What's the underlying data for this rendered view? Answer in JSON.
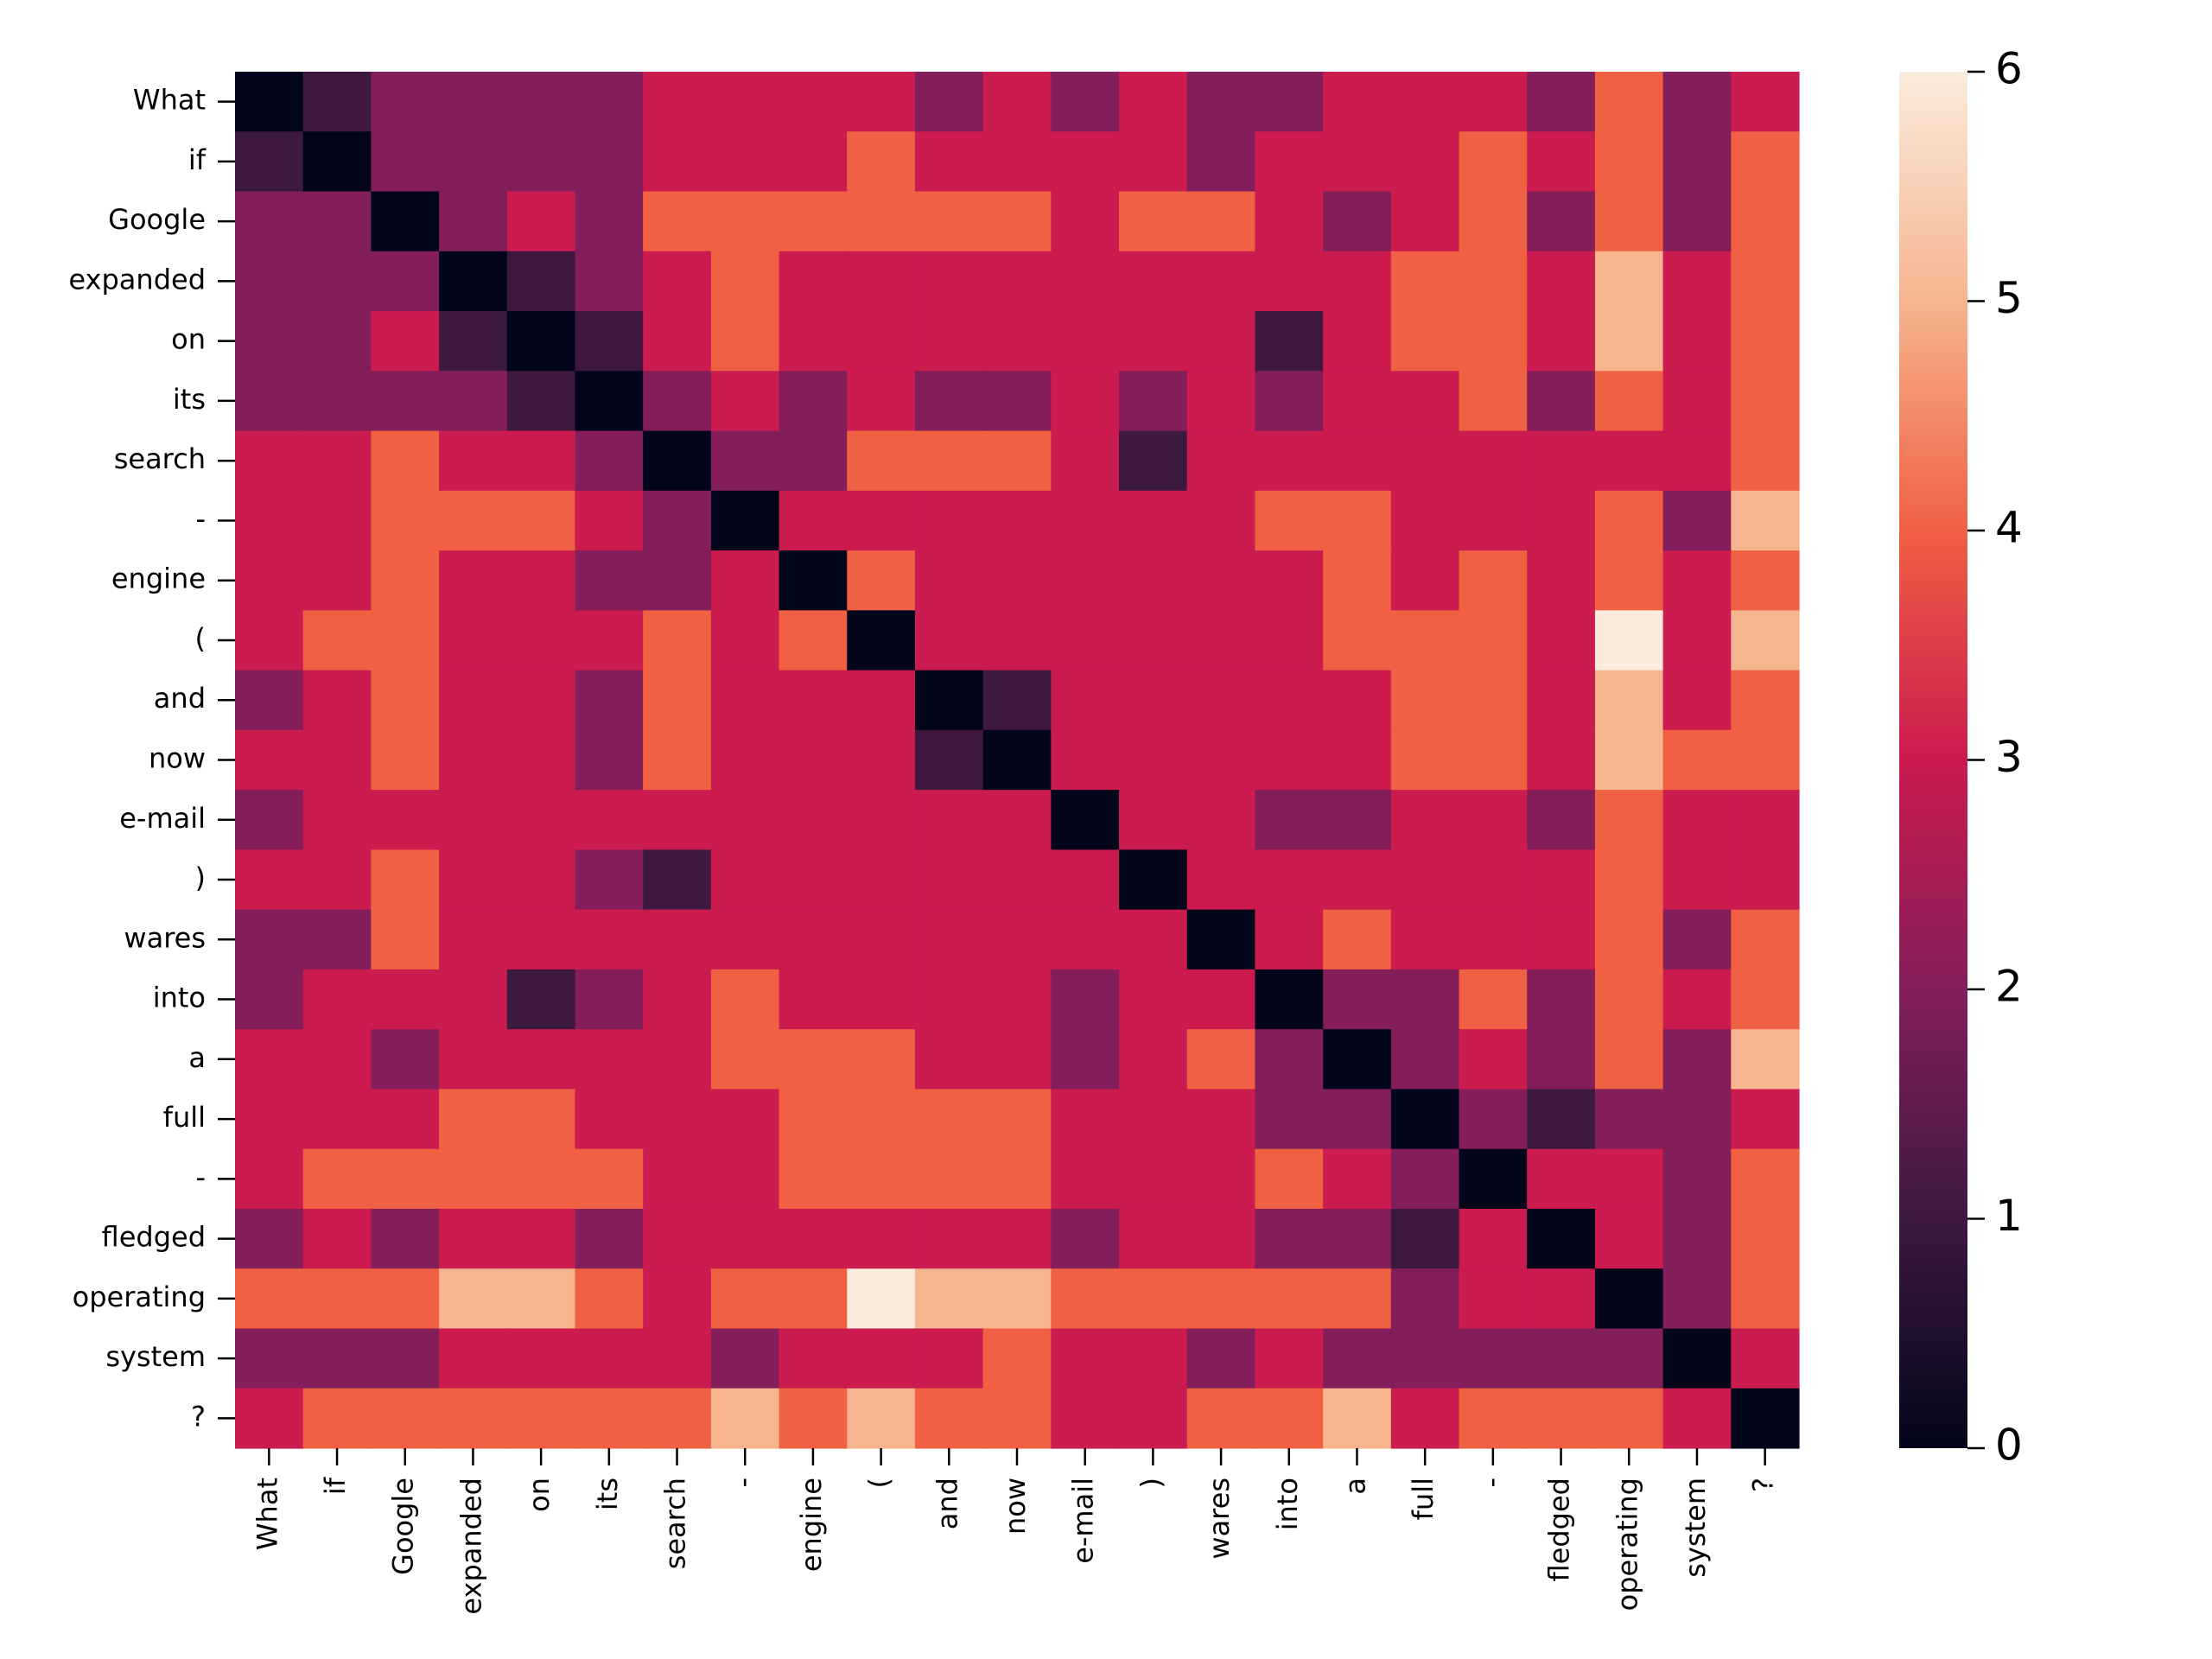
{
  "chart_data": {
    "type": "heatmap",
    "x_categories": [
      "What",
      "if",
      "Google",
      "expanded",
      "on",
      "its",
      "search",
      "-",
      "engine",
      "(",
      "and",
      "now",
      "e-mail",
      ")",
      "wares",
      "into",
      "a",
      "full",
      "-",
      "fledged",
      "operating",
      "system",
      "?"
    ],
    "y_categories": [
      "What",
      "if",
      "Google",
      "expanded",
      "on",
      "its",
      "search",
      "-",
      "engine",
      "(",
      "and",
      "now",
      "e-mail",
      ")",
      "wares",
      "into",
      "a",
      "full",
      "-",
      "fledged",
      "operating",
      "system",
      "?"
    ],
    "values": [
      [
        0,
        1,
        2,
        2,
        2,
        2,
        3,
        3,
        3,
        3,
        2,
        3,
        2,
        3,
        2,
        2,
        3,
        3,
        3,
        2,
        4,
        2,
        3
      ],
      [
        1,
        0,
        2,
        2,
        2,
        2,
        3,
        3,
        3,
        4,
        3,
        3,
        3,
        3,
        2,
        3,
        3,
        3,
        4,
        3,
        4,
        2,
        4
      ],
      [
        2,
        2,
        0,
        2,
        3,
        2,
        4,
        4,
        4,
        4,
        4,
        4,
        3,
        4,
        4,
        3,
        2,
        3,
        4,
        2,
        4,
        2,
        4
      ],
      [
        2,
        2,
        2,
        0,
        1,
        2,
        3,
        4,
        3,
        3,
        3,
        3,
        3,
        3,
        3,
        3,
        3,
        4,
        4,
        3,
        5,
        3,
        4
      ],
      [
        2,
        2,
        3,
        1,
        0,
        1,
        3,
        4,
        3,
        3,
        3,
        3,
        3,
        3,
        3,
        1,
        3,
        4,
        4,
        3,
        5,
        3,
        4
      ],
      [
        2,
        2,
        2,
        2,
        1,
        0,
        2,
        3,
        2,
        3,
        2,
        2,
        3,
        2,
        3,
        2,
        3,
        3,
        4,
        2,
        4,
        3,
        4
      ],
      [
        3,
        3,
        4,
        3,
        3,
        2,
        0,
        2,
        2,
        4,
        4,
        4,
        3,
        1,
        3,
        3,
        3,
        3,
        3,
        3,
        3,
        3,
        4
      ],
      [
        3,
        3,
        4,
        4,
        4,
        3,
        2,
        0,
        3,
        3,
        3,
        3,
        3,
        3,
        3,
        4,
        4,
        3,
        3,
        3,
        4,
        2,
        5
      ],
      [
        3,
        3,
        4,
        3,
        3,
        2,
        2,
        3,
        0,
        4,
        3,
        3,
        3,
        3,
        3,
        3,
        4,
        3,
        4,
        3,
        4,
        3,
        4
      ],
      [
        3,
        4,
        4,
        3,
        3,
        3,
        4,
        3,
        4,
        0,
        3,
        3,
        3,
        3,
        3,
        3,
        4,
        4,
        4,
        3,
        6,
        3,
        5
      ],
      [
        2,
        3,
        4,
        3,
        3,
        2,
        4,
        3,
        3,
        3,
        0,
        1,
        3,
        3,
        3,
        3,
        3,
        4,
        4,
        3,
        5,
        3,
        4
      ],
      [
        3,
        3,
        4,
        3,
        3,
        2,
        4,
        3,
        3,
        3,
        1,
        0,
        3,
        3,
        3,
        3,
        3,
        4,
        4,
        3,
        5,
        4,
        4
      ],
      [
        2,
        3,
        3,
        3,
        3,
        3,
        3,
        3,
        3,
        3,
        3,
        3,
        0,
        3,
        3,
        2,
        2,
        3,
        3,
        2,
        4,
        3,
        3
      ],
      [
        3,
        3,
        4,
        3,
        3,
        2,
        1,
        3,
        3,
        3,
        3,
        3,
        3,
        0,
        3,
        3,
        3,
        3,
        3,
        3,
        4,
        3,
        3
      ],
      [
        2,
        2,
        4,
        3,
        3,
        3,
        3,
        3,
        3,
        3,
        3,
        3,
        3,
        3,
        0,
        3,
        4,
        3,
        3,
        3,
        4,
        2,
        4
      ],
      [
        2,
        3,
        3,
        3,
        1,
        2,
        3,
        4,
        3,
        3,
        3,
        3,
        2,
        3,
        3,
        0,
        2,
        2,
        4,
        2,
        4,
        3,
        4
      ],
      [
        3,
        3,
        2,
        3,
        3,
        3,
        3,
        4,
        4,
        4,
        3,
        3,
        2,
        3,
        4,
        2,
        0,
        2,
        3,
        2,
        4,
        2,
        5
      ],
      [
        3,
        3,
        3,
        4,
        4,
        3,
        3,
        3,
        4,
        4,
        4,
        4,
        3,
        3,
        3,
        2,
        2,
        0,
        2,
        1,
        2,
        2,
        3
      ],
      [
        3,
        4,
        4,
        4,
        4,
        4,
        3,
        3,
        4,
        4,
        4,
        4,
        3,
        3,
        3,
        4,
        3,
        2,
        0,
        3,
        3,
        2,
        4
      ],
      [
        2,
        3,
        2,
        3,
        3,
        2,
        3,
        3,
        3,
        3,
        3,
        3,
        2,
        3,
        3,
        2,
        2,
        1,
        3,
        0,
        3,
        2,
        4
      ],
      [
        4,
        4,
        4,
        5,
        5,
        4,
        3,
        4,
        4,
        6,
        5,
        5,
        4,
        4,
        4,
        4,
        4,
        2,
        3,
        3,
        0,
        2,
        4
      ],
      [
        2,
        2,
        2,
        3,
        3,
        3,
        3,
        2,
        3,
        3,
        3,
        4,
        3,
        3,
        2,
        3,
        2,
        2,
        2,
        2,
        2,
        0,
        3
      ],
      [
        3,
        4,
        4,
        4,
        4,
        4,
        4,
        5,
        4,
        5,
        4,
        4,
        3,
        3,
        4,
        4,
        5,
        3,
        4,
        4,
        4,
        3,
        0
      ]
    ],
    "clim": [
      0,
      6
    ],
    "cticks": [
      0,
      1,
      2,
      3,
      4,
      5,
      6
    ],
    "colormap": [
      "#03051a",
      "#3d1940",
      "#841e5a",
      "#cb1b4f",
      "#f06043",
      "#f6b48f",
      "#faebdd"
    ]
  }
}
